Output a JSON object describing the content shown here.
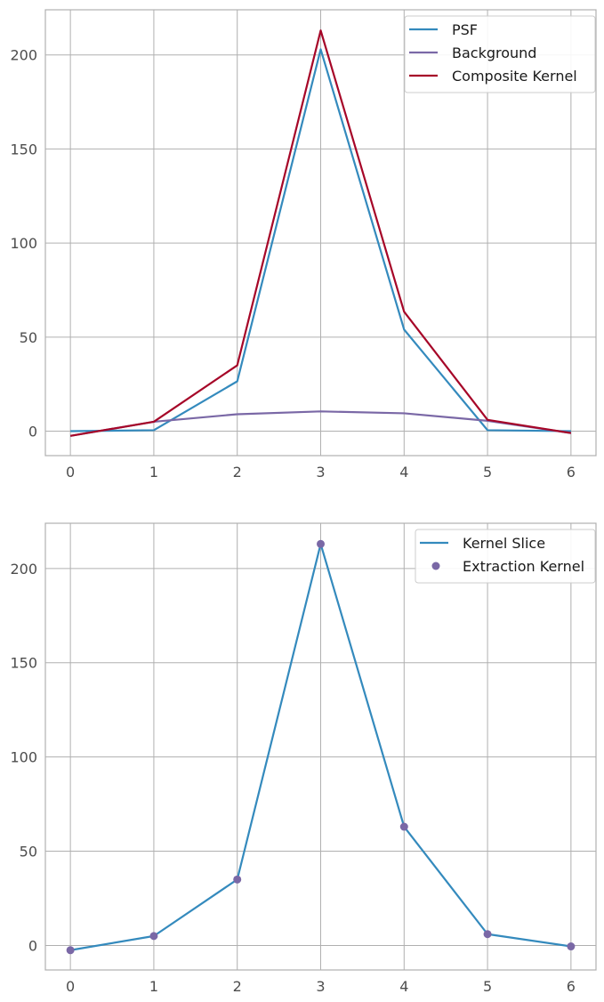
{
  "chart_data": [
    {
      "type": "line",
      "x": [
        0,
        1,
        2,
        3,
        4,
        5,
        6
      ],
      "xlim": [
        -0.3,
        6.3
      ],
      "ylim": [
        -13,
        224
      ],
      "xticks": [
        0,
        1,
        2,
        3,
        4,
        5,
        6
      ],
      "yticks": [
        0,
        50,
        100,
        150,
        200
      ],
      "grid": true,
      "legend_position": "top-right",
      "series": [
        {
          "name": "PSF",
          "style": "line",
          "color": "#348ABD",
          "values": [
            0,
            0.5,
            26.5,
            203,
            54,
            0.5,
            0
          ]
        },
        {
          "name": "Background",
          "style": "line",
          "color": "#7A68A6",
          "values": [
            -2.5,
            5,
            9,
            10.5,
            9.5,
            5.5,
            -1
          ]
        },
        {
          "name": "Composite Kernel",
          "style": "line",
          "color": "#A60628",
          "values": [
            -2.5,
            5,
            35,
            213,
            63.5,
            6,
            -1
          ]
        }
      ]
    },
    {
      "type": "line",
      "x": [
        0,
        1,
        2,
        3,
        4,
        5,
        6
      ],
      "xlim": [
        -0.3,
        6.3
      ],
      "ylim": [
        -13,
        224
      ],
      "xticks": [
        0,
        1,
        2,
        3,
        4,
        5,
        6
      ],
      "yticks": [
        0,
        50,
        100,
        150,
        200
      ],
      "grid": true,
      "legend_position": "top-right",
      "series": [
        {
          "name": "Kernel Slice",
          "style": "line",
          "color": "#348ABD",
          "values": [
            -2.5,
            5,
            35,
            213,
            63,
            6,
            -0.5
          ]
        },
        {
          "name": "Extraction Kernel",
          "style": "points",
          "color": "#7A68A6",
          "values": [
            -2.5,
            5,
            35,
            213,
            63,
            6,
            -0.5
          ]
        }
      ]
    }
  ]
}
